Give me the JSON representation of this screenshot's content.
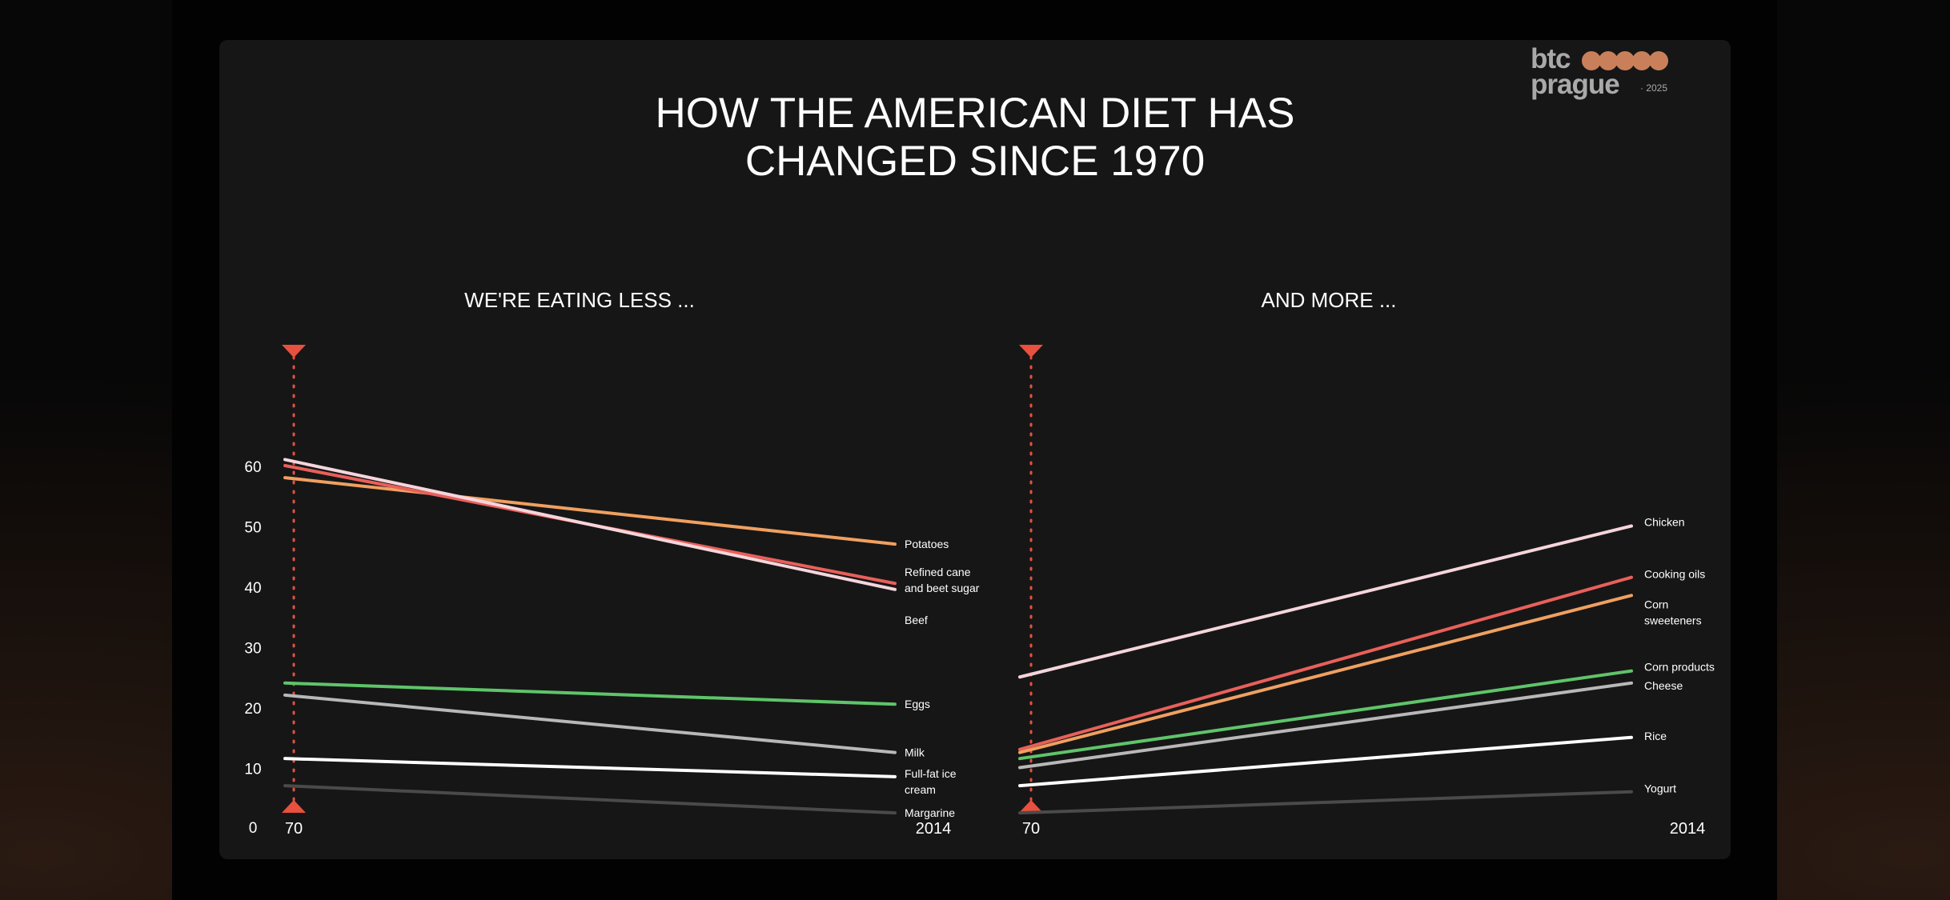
{
  "title_line1": "HOW THE AMERICAN DIET HAS",
  "title_line2": "CHANGED SINCE 1970",
  "logo": {
    "line1": "btc",
    "line2": "prague",
    "year": "· 2025",
    "dot_color": "#c9805a"
  },
  "chart_data": [
    {
      "type": "line",
      "title": "WE'RE EATING LESS ...",
      "x": [
        "70",
        "2014"
      ],
      "y_ticks": [
        "0",
        "10",
        "20",
        "30",
        "40",
        "50",
        "60"
      ],
      "ylim": [
        0,
        70
      ],
      "series": [
        {
          "name": "Potatoes",
          "values": [
            58,
            47
          ],
          "color": "#f0a060"
        },
        {
          "name": "Refined cane and beet sugar",
          "values": [
            60,
            40.5
          ],
          "color": "#e8605a"
        },
        {
          "name": "Beef",
          "values": [
            61,
            39.5
          ],
          "color": "#f5d5dc"
        },
        {
          "name": "Eggs",
          "values": [
            24,
            20.5
          ],
          "color": "#5fc46a"
        },
        {
          "name": "Milk",
          "values": [
            22,
            12.5
          ],
          "color": "#b8b8b8"
        },
        {
          "name": "Full-fat ice cream",
          "values": [
            11.5,
            8.5
          ],
          "color": "#ffffff"
        },
        {
          "name": "Margarine",
          "values": [
            7,
            2.5
          ],
          "color": "#4a4a4a"
        }
      ]
    },
    {
      "type": "line",
      "title": "AND MORE ...",
      "x": [
        "70",
        "2014"
      ],
      "series": [
        {
          "name": "Chicken",
          "values": [
            25,
            50
          ],
          "color": "#f5d5dc"
        },
        {
          "name": "Cooking oils",
          "values": [
            13,
            41.5
          ],
          "color": "#e8605a"
        },
        {
          "name": "Corn sweeteners",
          "values": [
            12.5,
            38.5
          ],
          "color": "#f0a060"
        },
        {
          "name": "Corn products",
          "values": [
            11.5,
            26
          ],
          "color": "#5fc46a"
        },
        {
          "name": "Cheese",
          "values": [
            10,
            24
          ],
          "color": "#b8b8b8"
        },
        {
          "name": "Rice",
          "values": [
            7,
            15
          ],
          "color": "#ffffff"
        },
        {
          "name": "Yogurt",
          "values": [
            2.5,
            6
          ],
          "color": "#4a4a4a"
        }
      ]
    }
  ],
  "colors": {
    "marker": "#e8503f",
    "background": "#161616",
    "text": "#ffffff"
  }
}
